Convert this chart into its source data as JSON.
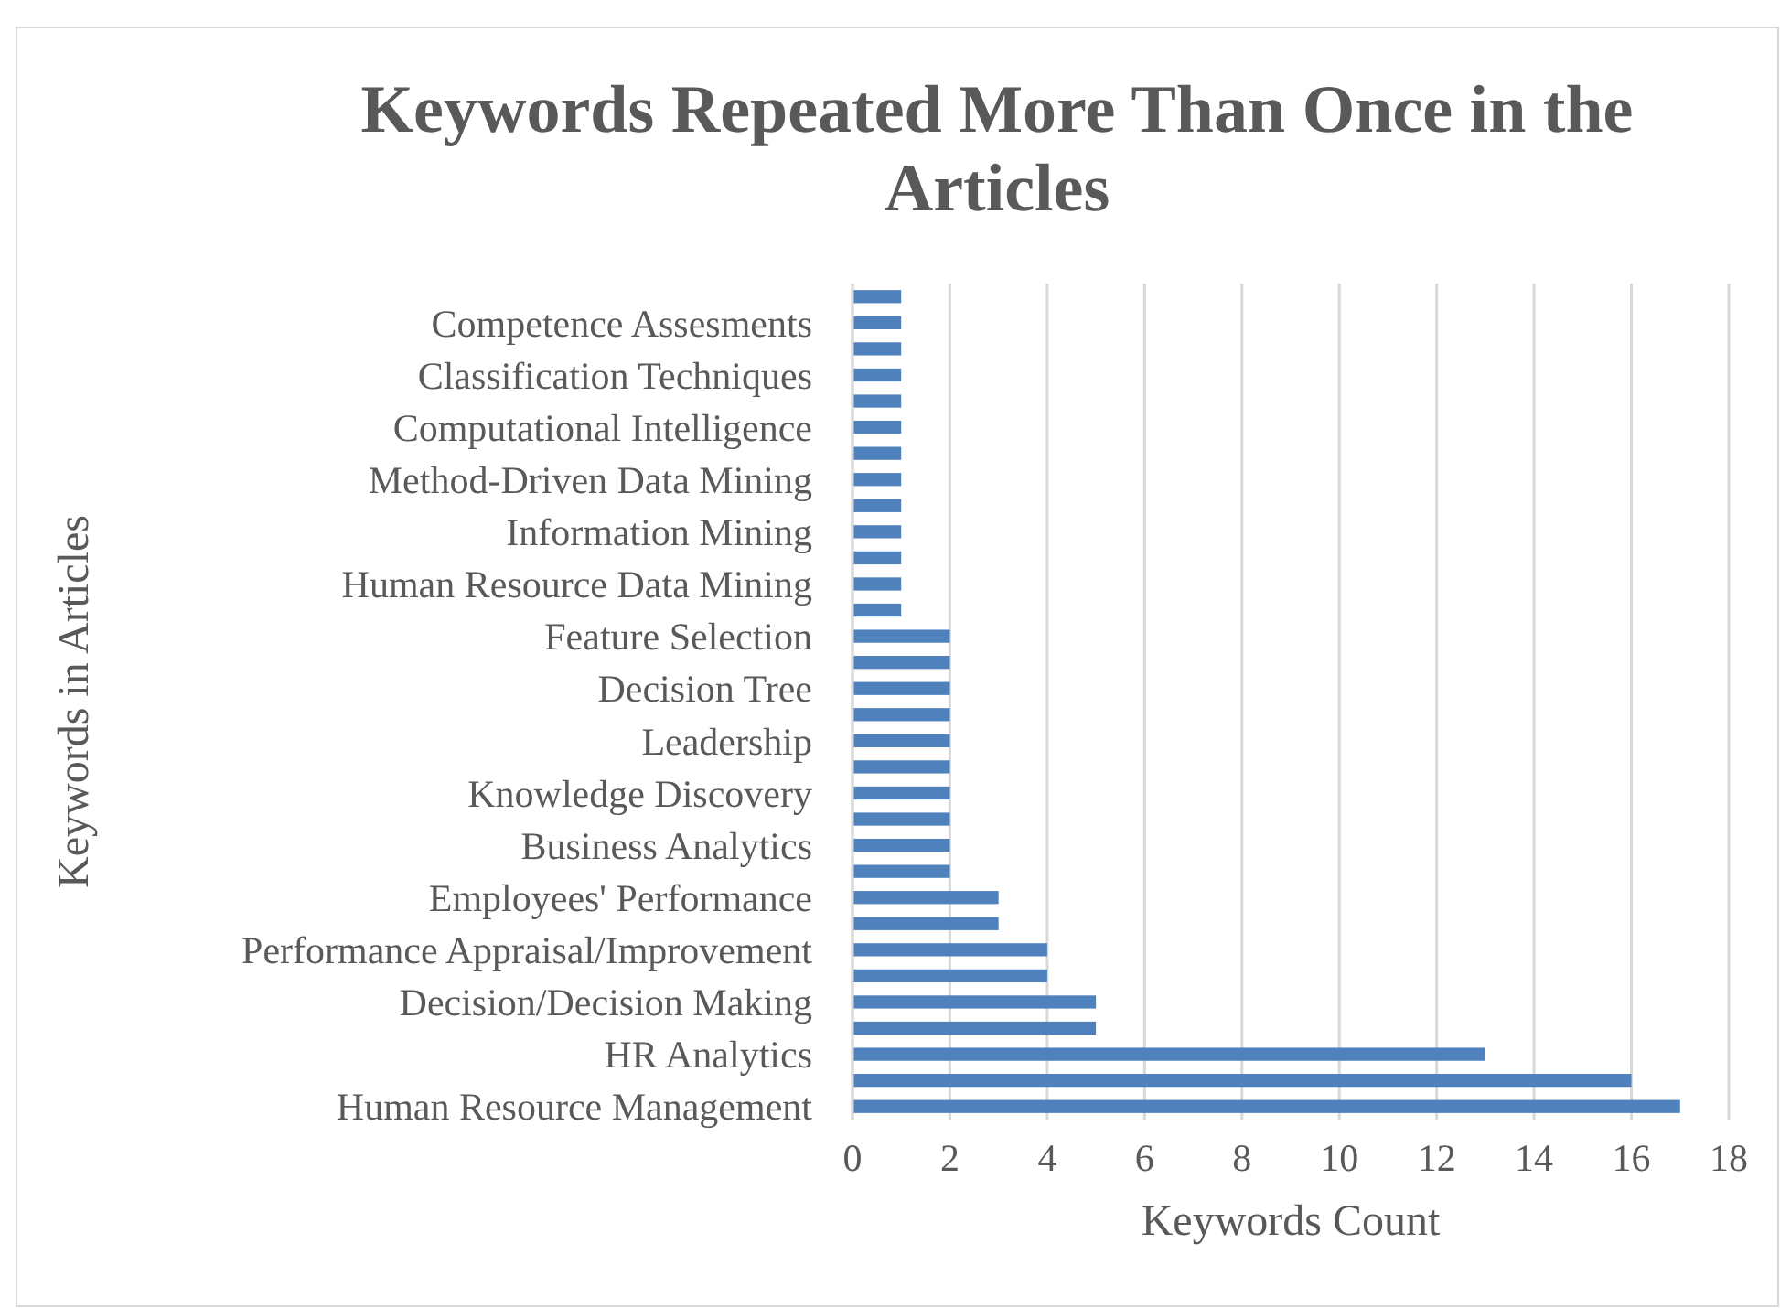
{
  "chart_data": {
    "type": "bar",
    "orientation": "horizontal",
    "title": "Keywords Repeated More Than Once in the Articles",
    "xlabel": "Keywords Count",
    "ylabel": "Keywords in Articles",
    "categories": [
      null,
      "Competence Assesments",
      null,
      "Classification Techniques",
      null,
      "Computational Intelligence",
      null,
      "Method-Driven Data Mining",
      null,
      "Information Mining",
      null,
      "Human Resource Data Mining",
      null,
      "Feature Selection",
      null,
      "Decision Tree",
      null,
      "Leadership",
      null,
      "Knowledge Discovery",
      null,
      "Business Analytics",
      null,
      "Employees' Performance",
      null,
      "Performance Appraisal/Improvement",
      null,
      "Decision/Decision Making",
      null,
      "HR Analytics",
      null,
      "Human Resource Management"
    ],
    "values": [
      1,
      1,
      1,
      1,
      1,
      1,
      1,
      1,
      1,
      1,
      1,
      1,
      1,
      2,
      2,
      2,
      2,
      2,
      2,
      2,
      2,
      2,
      2,
      3,
      3,
      4,
      4,
      5,
      5,
      13,
      16,
      17
    ],
    "color": "#4f81bd",
    "xlim": [
      0,
      18
    ],
    "xticks": [
      0,
      2,
      4,
      6,
      8,
      10,
      12,
      14,
      16,
      18
    ],
    "grid": "x"
  }
}
